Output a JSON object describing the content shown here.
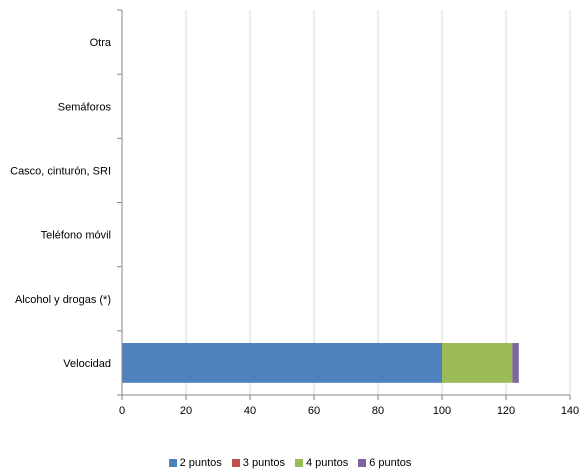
{
  "chart_data": {
    "type": "bar",
    "orientation": "horizontal",
    "stacked": true,
    "categories": [
      "Velocidad",
      "Alcohol y drogas (*)",
      "Teléfono móvil",
      "Casco, cinturón, SRI",
      "Semáforos",
      "Otra"
    ],
    "series": [
      {
        "name": "2 puntos",
        "color": "#4f81bd",
        "values": [
          100,
          0,
          0,
          0,
          0,
          0
        ]
      },
      {
        "name": "3 puntos",
        "color": "#c0504d",
        "values": [
          0,
          0,
          0,
          0,
          0,
          0
        ]
      },
      {
        "name": "4 puntos",
        "color": "#9bbb59",
        "values": [
          22,
          0,
          0,
          0,
          0,
          0
        ]
      },
      {
        "name": "6 puntos",
        "color": "#8064a2",
        "values": [
          2,
          0,
          0,
          0,
          0,
          0
        ]
      }
    ],
    "xlim": [
      0,
      140
    ],
    "xticks": [
      0,
      20,
      40,
      60,
      80,
      100,
      120,
      140
    ],
    "grid": true,
    "legend_position": "bottom"
  }
}
